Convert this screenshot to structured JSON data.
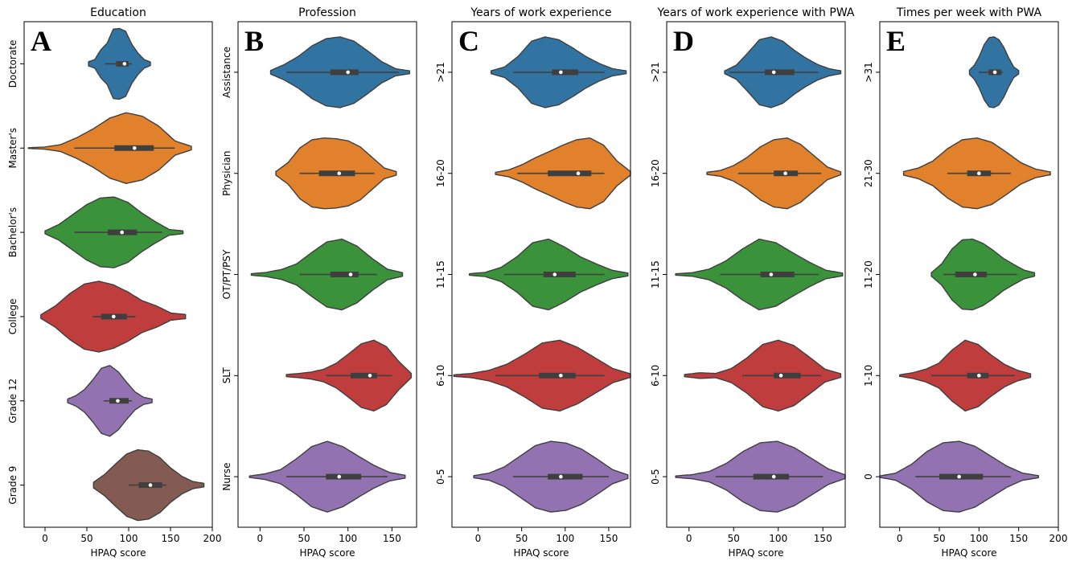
{
  "chart_data": [
    {
      "type": "violin",
      "panel_letter": "A",
      "title": "Education",
      "xlabel": "HPAQ score",
      "xlim": [
        -25,
        200
      ],
      "xticks": [
        0,
        50,
        100,
        150,
        200
      ],
      "categories": [
        "Doctorate",
        "Master's",
        "Bachelor's",
        "College",
        "Grade 12",
        "Grade 9"
      ],
      "colors": [
        "#3274a1",
        "#e1812c",
        "#3a923a",
        "#c03d3e",
        "#9372b2",
        "#845b53"
      ],
      "violins": [
        {
          "min": 52,
          "max": 126,
          "mode": 97,
          "density": [
            0.06,
            0.12,
            0.4,
            0.58,
            0.98,
            1.0,
            0.92,
            0.55,
            0.3,
            0.12,
            0.05
          ],
          "q1": 85,
          "q3": 100,
          "median": 95,
          "whisker_low": 72,
          "whisker_high": 104
        },
        {
          "min": -20,
          "max": 175,
          "mode": 110,
          "density": [
            0.01,
            0.03,
            0.1,
            0.3,
            0.55,
            0.85,
            1.0,
            0.9,
            0.62,
            0.2,
            0.05
          ],
          "q1": 83,
          "q3": 130,
          "median": 107,
          "whisker_low": 35,
          "whisker_high": 155
        },
        {
          "min": 0,
          "max": 165,
          "mode": 92,
          "density": [
            0.04,
            0.22,
            0.5,
            0.78,
            0.97,
            1.0,
            0.85,
            0.55,
            0.3,
            0.08,
            0.04
          ],
          "q1": 75,
          "q3": 110,
          "median": 92,
          "whisker_low": 35,
          "whisker_high": 140
        },
        {
          "min": -5,
          "max": 168,
          "mode": 80,
          "density": [
            0.05,
            0.3,
            0.65,
            0.92,
            1.0,
            0.9,
            0.7,
            0.45,
            0.3,
            0.1,
            0.06
          ],
          "q1": 67,
          "q3": 98,
          "median": 82,
          "whisker_low": 57,
          "whisker_high": 108
        },
        {
          "min": 27,
          "max": 128,
          "mode": 85,
          "density": [
            0.05,
            0.15,
            0.32,
            0.6,
            0.92,
            1.0,
            0.82,
            0.52,
            0.25,
            0.1,
            0.05
          ],
          "q1": 77,
          "q3": 100,
          "median": 87,
          "whisker_low": 70,
          "whisker_high": 104
        },
        {
          "min": 58,
          "max": 190,
          "mode": 125,
          "density": [
            0.08,
            0.3,
            0.6,
            0.88,
            1.0,
            0.96,
            0.78,
            0.48,
            0.25,
            0.1,
            0.05
          ],
          "q1": 112,
          "q3": 140,
          "median": 126,
          "whisker_low": 100,
          "whisker_high": 145
        }
      ]
    },
    {
      "type": "violin",
      "panel_letter": "B",
      "title": "Profession",
      "xlabel": "HPAQ score",
      "xlim": [
        -25,
        178
      ],
      "xticks": [
        0,
        50,
        100,
        150
      ],
      "categories": [
        "Assistance",
        "Physician",
        "OT/PT/PSY",
        "SLT",
        "Nurse"
      ],
      "colors": [
        "#3274a1",
        "#e1812c",
        "#3a923a",
        "#c03d3e",
        "#9372b2"
      ],
      "violins": [
        {
          "min": 12,
          "max": 170,
          "mode": 100,
          "density": [
            0.05,
            0.22,
            0.45,
            0.75,
            0.95,
            1.0,
            0.88,
            0.6,
            0.3,
            0.1,
            0.04
          ],
          "q1": 80,
          "q3": 112,
          "median": 100,
          "whisker_low": 30,
          "whisker_high": 158
        },
        {
          "min": 18,
          "max": 155,
          "mode": 90,
          "density": [
            0.05,
            0.3,
            0.72,
            0.95,
            1.0,
            0.98,
            0.92,
            0.75,
            0.45,
            0.15,
            0.05
          ],
          "q1": 67,
          "q3": 108,
          "median": 90,
          "whisker_low": 45,
          "whisker_high": 130
        },
        {
          "min": -10,
          "max": 162,
          "mode": 103,
          "density": [
            0.02,
            0.06,
            0.14,
            0.3,
            0.62,
            0.92,
            1.0,
            0.8,
            0.45,
            0.15,
            0.05
          ],
          "q1": 80,
          "q3": 112,
          "median": 103,
          "whisker_low": 45,
          "whisker_high": 133
        },
        {
          "min": 30,
          "max": 172,
          "mode": 127,
          "density": [
            0.03,
            0.06,
            0.1,
            0.18,
            0.35,
            0.62,
            0.9,
            1.0,
            0.82,
            0.4,
            0.06
          ],
          "q1": 103,
          "q3": 133,
          "median": 125,
          "whisker_low": 75,
          "whisker_high": 150
        },
        {
          "min": -12,
          "max": 165,
          "mode": 88,
          "density": [
            0.02,
            0.08,
            0.2,
            0.5,
            0.85,
            1.0,
            0.85,
            0.58,
            0.32,
            0.12,
            0.04
          ],
          "q1": 75,
          "q3": 115,
          "median": 90,
          "whisker_low": 30,
          "whisker_high": 145
        }
      ]
    },
    {
      "type": "violin",
      "panel_letter": "C",
      "title": "Years of work experience",
      "xlabel": "HPAQ score",
      "xlim": [
        -30,
        175
      ],
      "xticks": [
        0,
        50,
        100,
        150
      ],
      "categories": [
        ">21",
        "16-20",
        "11-15",
        "6-10",
        "0-5"
      ],
      "colors": [
        "#3274a1",
        "#e1812c",
        "#3a923a",
        "#c03d3e",
        "#9372b2"
      ],
      "violins": [
        {
          "min": 15,
          "max": 170,
          "mode": 88,
          "density": [
            0.04,
            0.15,
            0.45,
            0.88,
            1.0,
            0.92,
            0.7,
            0.45,
            0.25,
            0.1,
            0.04
          ],
          "q1": 85,
          "q3": 115,
          "median": 95,
          "whisker_low": 40,
          "whisker_high": 145
        },
        {
          "min": 20,
          "max": 175,
          "mode": 118,
          "density": [
            0.03,
            0.1,
            0.25,
            0.45,
            0.62,
            0.8,
            0.95,
            1.0,
            0.8,
            0.35,
            0.05
          ],
          "q1": 80,
          "q3": 130,
          "median": 115,
          "whisker_low": 45,
          "whisker_high": 145
        },
        {
          "min": -10,
          "max": 172,
          "mode": 90,
          "density": [
            0.02,
            0.06,
            0.2,
            0.5,
            0.9,
            1.0,
            0.78,
            0.5,
            0.3,
            0.12,
            0.04
          ],
          "q1": 75,
          "q3": 112,
          "median": 88,
          "whisker_low": 30,
          "whisker_high": 145
        },
        {
          "min": -28,
          "max": 175,
          "mode": 92,
          "density": [
            0.02,
            0.06,
            0.15,
            0.32,
            0.6,
            0.92,
            1.0,
            0.8,
            0.5,
            0.2,
            0.05
          ],
          "q1": 70,
          "q3": 112,
          "median": 95,
          "whisker_low": 20,
          "whisker_high": 145
        },
        {
          "min": -5,
          "max": 172,
          "mode": 95,
          "density": [
            0.03,
            0.1,
            0.28,
            0.58,
            0.88,
            1.0,
            0.95,
            0.78,
            0.5,
            0.2,
            0.05
          ],
          "q1": 80,
          "q3": 120,
          "median": 95,
          "whisker_low": 40,
          "whisker_high": 150
        }
      ]
    },
    {
      "type": "violin",
      "panel_letter": "D",
      "title": "Years of work experience with PWA",
      "xlabel": "HPAQ score",
      "xlim": [
        -25,
        175
      ],
      "xticks": [
        0,
        50,
        100,
        150
      ],
      "categories": [
        ">21",
        "16-20",
        "11-15",
        "6-10",
        "0-5"
      ],
      "colors": [
        "#3274a1",
        "#e1812c",
        "#3a923a",
        "#c03d3e",
        "#9372b2"
      ],
      "violins": [
        {
          "min": 40,
          "max": 170,
          "mode": 85,
          "density": [
            0.04,
            0.2,
            0.55,
            0.92,
            1.0,
            0.88,
            0.62,
            0.4,
            0.22,
            0.1,
            0.04
          ],
          "q1": 85,
          "q3": 118,
          "median": 95,
          "whisker_low": 45,
          "whisker_high": 145
        },
        {
          "min": 20,
          "max": 170,
          "mode": 110,
          "density": [
            0.03,
            0.08,
            0.22,
            0.45,
            0.75,
            0.95,
            1.0,
            0.82,
            0.5,
            0.18,
            0.04
          ],
          "q1": 95,
          "q3": 122,
          "median": 108,
          "whisker_low": 55,
          "whisker_high": 148
        },
        {
          "min": -15,
          "max": 172,
          "mode": 92,
          "density": [
            0.02,
            0.05,
            0.15,
            0.38,
            0.72,
            1.0,
            0.9,
            0.62,
            0.35,
            0.12,
            0.04
          ],
          "q1": 80,
          "q3": 118,
          "median": 92,
          "whisker_low": 35,
          "whisker_high": 145
        },
        {
          "min": -5,
          "max": 170,
          "mode": 100,
          "density": [
            0.03,
            0.08,
            0.06,
            0.2,
            0.5,
            0.88,
            1.0,
            0.85,
            0.52,
            0.18,
            0.05
          ],
          "q1": 95,
          "q3": 125,
          "median": 103,
          "whisker_low": 60,
          "whisker_high": 148
        },
        {
          "min": -15,
          "max": 175,
          "mode": 100,
          "density": [
            0.02,
            0.06,
            0.15,
            0.38,
            0.72,
            0.96,
            1.0,
            0.82,
            0.52,
            0.22,
            0.05
          ],
          "q1": 72,
          "q3": 112,
          "median": 95,
          "whisker_low": 30,
          "whisker_high": 150
        }
      ]
    },
    {
      "type": "violin",
      "panel_letter": "E",
      "title": "Times per week with PWA",
      "xlabel": "HPAQ score",
      "xlim": [
        -25,
        200
      ],
      "xticks": [
        0,
        50,
        100,
        150,
        200
      ],
      "categories": [
        ">31",
        "21-30",
        "11-20",
        "1-10",
        "0"
      ],
      "colors": [
        "#3274a1",
        "#e1812c",
        "#3a923a",
        "#c03d3e",
        "#9372b2"
      ],
      "violins": [
        {
          "min": 88,
          "max": 150,
          "mode": 120,
          "density": [
            0.06,
            0.2,
            0.45,
            0.78,
            0.98,
            1.0,
            0.92,
            0.7,
            0.4,
            0.15,
            0.05
          ],
          "q1": 112,
          "q3": 128,
          "median": 120,
          "whisker_low": 100,
          "whisker_high": 130
        },
        {
          "min": 5,
          "max": 190,
          "mode": 100,
          "density": [
            0.05,
            0.15,
            0.35,
            0.7,
            0.95,
            1.0,
            0.88,
            0.6,
            0.3,
            0.12,
            0.04
          ],
          "q1": 85,
          "q3": 115,
          "median": 100,
          "whisker_low": 60,
          "whisker_high": 140
        },
        {
          "min": 40,
          "max": 170,
          "mode": 85,
          "density": [
            0.05,
            0.3,
            0.72,
            0.98,
            1.0,
            0.88,
            0.68,
            0.45,
            0.28,
            0.12,
            0.05
          ],
          "q1": 70,
          "q3": 110,
          "median": 95,
          "whisker_low": 55,
          "whisker_high": 148
        },
        {
          "min": 0,
          "max": 165,
          "mode": 100,
          "density": [
            0.02,
            0.08,
            0.18,
            0.35,
            0.72,
            1.0,
            0.88,
            0.58,
            0.32,
            0.15,
            0.05
          ],
          "q1": 85,
          "q3": 112,
          "median": 100,
          "whisker_low": 40,
          "whisker_high": 145
        },
        {
          "min": -25,
          "max": 175,
          "mode": 75,
          "density": [
            0.02,
            0.1,
            0.35,
            0.72,
            0.96,
            1.0,
            0.86,
            0.58,
            0.3,
            0.1,
            0.03
          ],
          "q1": 50,
          "q3": 105,
          "median": 75,
          "whisker_low": 20,
          "whisker_high": 140
        }
      ]
    }
  ]
}
